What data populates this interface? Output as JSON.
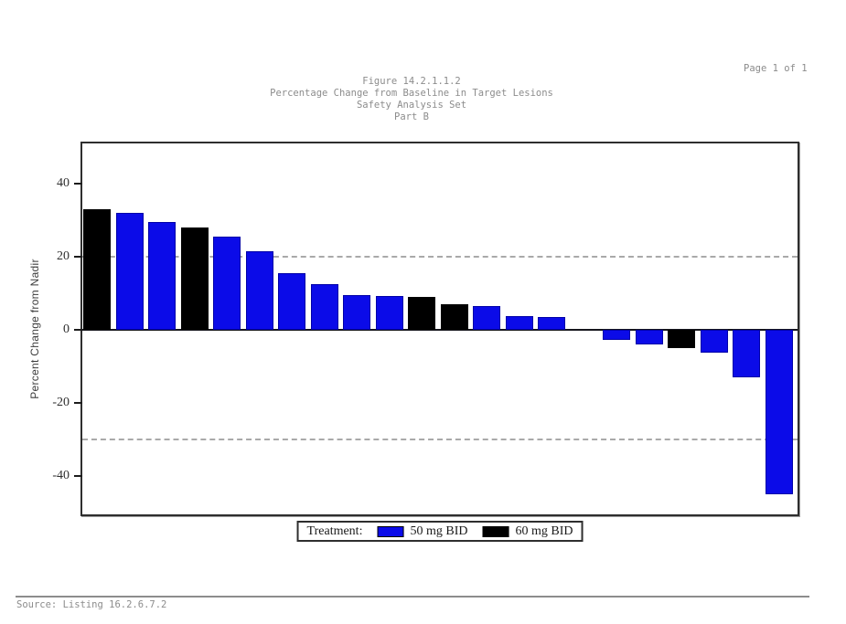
{
  "page": {
    "page_label": "Page 1 of 1",
    "source_note": "Source: Listing 16.2.6.7.2"
  },
  "titles": {
    "line1": "Figure 14.2.1.1.2",
    "line2": "Percentage Change from Baseline in Target Lesions",
    "line3": "Safety Analysis Set",
    "line4": "Part B"
  },
  "legend": {
    "label": "Treatment:",
    "entries": [
      {
        "name": "50 mg BID",
        "color": "#0b0be8"
      },
      {
        "name": "60 mg BID",
        "color": "#000000"
      }
    ]
  },
  "colors": {
    "blue_bar": "#0b0be8",
    "black_bar": "#000000",
    "reference_line": "#a9a9a9",
    "frame": "#2e2e2e",
    "gray_text": "#8c8c8c"
  },
  "chart_data": {
    "type": "bar",
    "title": "Percentage Change from Baseline in Target Lesions",
    "ylabel": "Percent Change from Nadir",
    "xlabel": "",
    "ylim": [
      -50.5,
      51
    ],
    "yticks": [
      40,
      20,
      0,
      -20,
      -40
    ],
    "reference_lines": [
      20,
      -30
    ],
    "grid": false,
    "legend_position": "bottom",
    "series": [
      {
        "name": "50 mg BID",
        "color": "#0b0be8"
      },
      {
        "name": "60 mg BID",
        "color": "#000000"
      }
    ],
    "bars": [
      {
        "index": 1,
        "value": 33,
        "treatment": "60 mg BID"
      },
      {
        "index": 2,
        "value": 32,
        "treatment": "50 mg BID"
      },
      {
        "index": 3,
        "value": 29.5,
        "treatment": "50 mg BID"
      },
      {
        "index": 4,
        "value": 28,
        "treatment": "60 mg BID"
      },
      {
        "index": 5,
        "value": 25.5,
        "treatment": "50 mg BID"
      },
      {
        "index": 6,
        "value": 21.5,
        "treatment": "50 mg BID"
      },
      {
        "index": 7,
        "value": 15.5,
        "treatment": "50 mg BID"
      },
      {
        "index": 8,
        "value": 12.5,
        "treatment": "50 mg BID"
      },
      {
        "index": 9,
        "value": 9.6,
        "treatment": "50 mg BID"
      },
      {
        "index": 10,
        "value": 9.3,
        "treatment": "50 mg BID"
      },
      {
        "index": 11,
        "value": 9,
        "treatment": "60 mg BID"
      },
      {
        "index": 12,
        "value": 7,
        "treatment": "60 mg BID"
      },
      {
        "index": 13,
        "value": 6.5,
        "treatment": "50 mg BID"
      },
      {
        "index": 14,
        "value": 3.8,
        "treatment": "50 mg BID"
      },
      {
        "index": 15,
        "value": 3.5,
        "treatment": "50 mg BID"
      },
      {
        "index": 16,
        "value": 0,
        "treatment": "50 mg BID"
      },
      {
        "index": 17,
        "value": -2.8,
        "treatment": "50 mg BID"
      },
      {
        "index": 18,
        "value": -4,
        "treatment": "50 mg BID"
      },
      {
        "index": 19,
        "value": -5,
        "treatment": "60 mg BID"
      },
      {
        "index": 20,
        "value": -6.2,
        "treatment": "50 mg BID"
      },
      {
        "index": 21,
        "value": -13,
        "treatment": "50 mg BID"
      },
      {
        "index": 22,
        "value": -45,
        "treatment": "50 mg BID"
      }
    ]
  }
}
